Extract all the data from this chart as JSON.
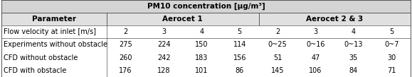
{
  "title": "PM10 concentration [μg/m³]",
  "col0_header": "Parameter",
  "aerocet1_label": "Aerocet 1",
  "aerocet2_label": "Aerocet 2 & 3",
  "row_labels": [
    "Flow velocity at inlet [m/s]",
    "Experiments without obstacle",
    "CFD without obstacle",
    "CFD with obstacle"
  ],
  "rows": [
    [
      "2",
      "3",
      "4",
      "5",
      "2",
      "3",
      "4",
      "5"
    ],
    [
      "275",
      "224",
      "150",
      "114",
      "0~25",
      "0~16",
      "0~13",
      "0~7"
    ],
    [
      "260",
      "242",
      "183",
      "156",
      "51",
      "47",
      "35",
      "30"
    ],
    [
      "176",
      "128",
      "101",
      "86",
      "145",
      "106",
      "84",
      "71"
    ]
  ],
  "title_bg": "#d4d4d4",
  "header_bg": "#e0e0e0",
  "data_bg": "#ffffff",
  "border_color": "#555555",
  "text_color": "#000000",
  "title_fontsize": 7.5,
  "header_fontsize": 7.5,
  "data_fontsize": 7.0,
  "fig_width": 5.79,
  "fig_height": 1.09,
  "dpi": 100
}
